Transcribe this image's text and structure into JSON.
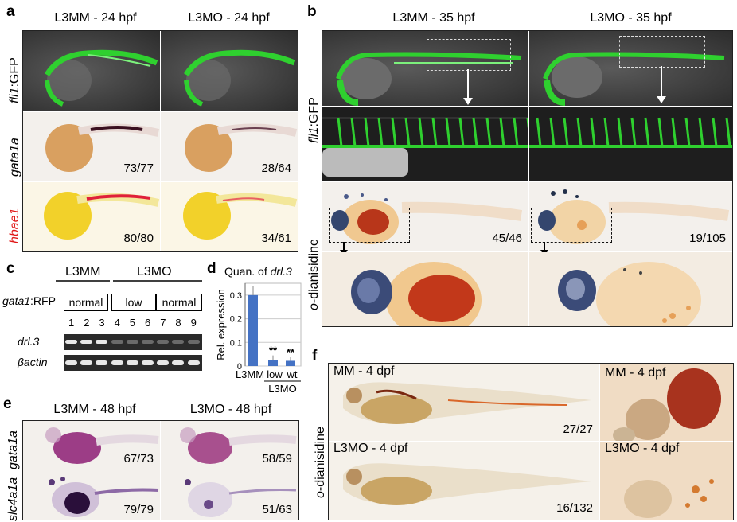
{
  "panel_a": {
    "label": "a",
    "col_titles": [
      "L3MM - 24 hpf",
      "L3MO - 24 hpf"
    ],
    "row_labels": {
      "fli": {
        "gene": "fli1",
        "suffix": ":GFP"
      },
      "gata": "gata1a",
      "hbae": "hbae1"
    },
    "counts": {
      "gata_mm": "73/77",
      "gata_mo": "28/64",
      "hbae_mm": "80/80",
      "hbae_mo": "34/61"
    }
  },
  "panel_b": {
    "label": "b",
    "col_titles": [
      "L3MM - 35 hpf",
      "L3MO - 35 hpf"
    ],
    "row_labels": {
      "fli": {
        "gene": "fli1",
        "suffix": ":GFP"
      },
      "odia": {
        "prefix": "o",
        "rest": "-dianisidine"
      }
    },
    "counts": {
      "mm": "45/46",
      "mo": "19/105"
    }
  },
  "panel_c": {
    "label": "c",
    "group_mm": "L3MM",
    "group_mo": "L3MO",
    "rfp_label": {
      "gene": "gata1",
      "suffix": ":RFP"
    },
    "rfp_boxes": [
      "normal",
      "low",
      "normal"
    ],
    "lanes": [
      "1",
      "2",
      "3",
      "4",
      "5",
      "6",
      "7",
      "8",
      "9"
    ],
    "gene_labels": {
      "drl": "drl.3",
      "actin": "βactin"
    }
  },
  "panel_d": {
    "label": "d",
    "title_prefix": "Quan. of ",
    "title_gene": "drl.3",
    "chart_data": {
      "type": "bar",
      "categories": [
        "L3MM",
        "low",
        "wt"
      ],
      "group_label": "L3MO",
      "values": [
        0.3,
        0.025,
        0.022
      ],
      "errors": [
        0.04,
        0.02,
        0.015
      ],
      "significance": [
        "",
        "**",
        "**"
      ],
      "ylabel": "Rel. expression",
      "ylim": [
        0,
        0.35
      ],
      "yticks": [
        "0",
        "0.1",
        "0.2",
        "0.3"
      ],
      "grid": true,
      "bar_color": "#4472c4"
    }
  },
  "panel_e": {
    "label": "e",
    "col_titles": [
      "L3MM - 48 hpf",
      "L3MO - 48 hpf"
    ],
    "row_labels": {
      "gata": "gata1a",
      "slc": "slc4a1a"
    },
    "counts": {
      "gata_mm": "67/73",
      "gata_mo": "58/59",
      "slc_mm": "79/79",
      "slc_mo": "51/63"
    }
  },
  "panel_f": {
    "label": "f",
    "row_label": {
      "prefix": "o",
      "rest": "-dianisidine"
    },
    "titles": {
      "mm": "MM - 4 dpf",
      "mo": "L3MO - 4 dpf"
    },
    "counts": {
      "mm": "27/27",
      "mo": "16/132"
    }
  }
}
